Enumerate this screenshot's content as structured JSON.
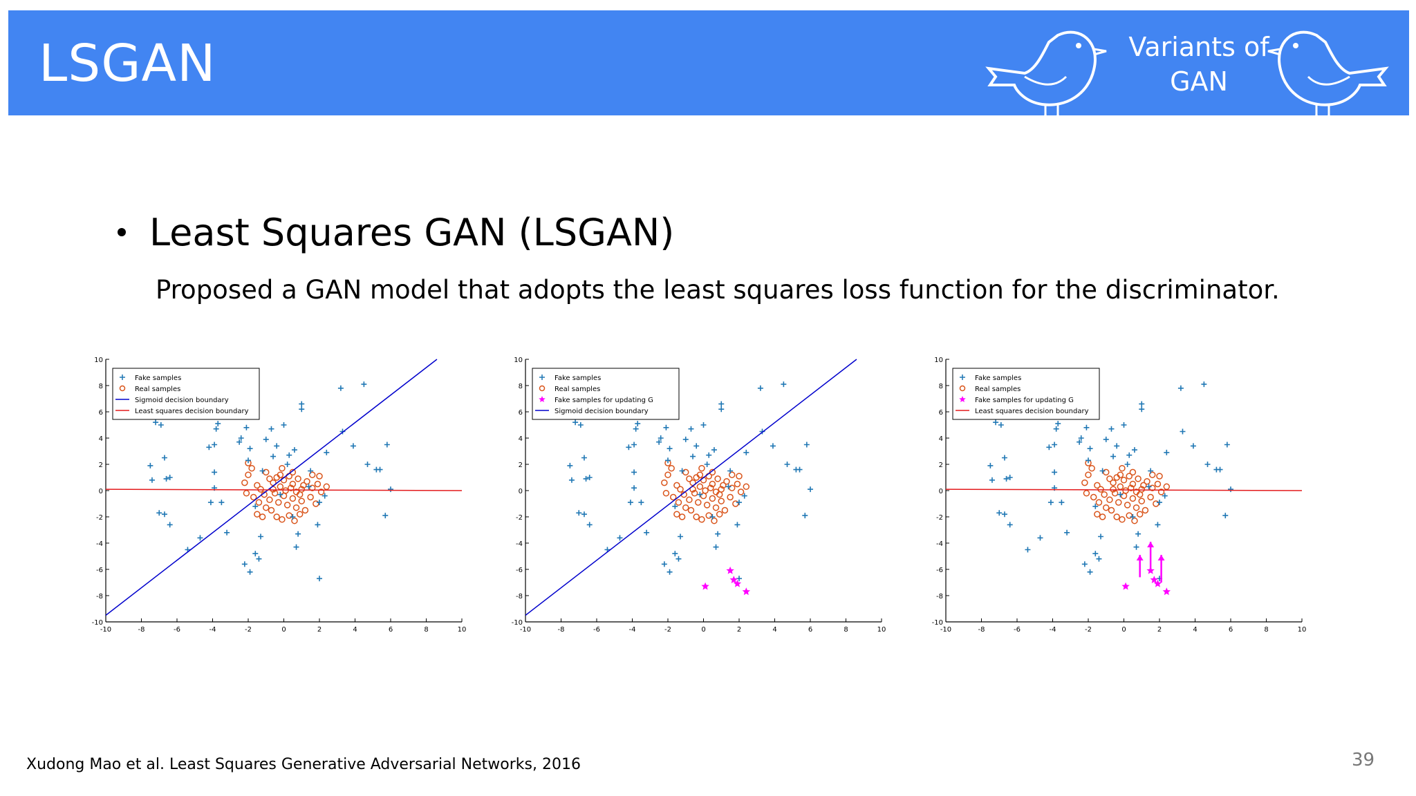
{
  "header": {
    "title": "LSGAN",
    "badge": "Variants of GAN",
    "color": "#4285f2"
  },
  "content": {
    "bullet": "Least Squares GAN (LSGAN)",
    "description": "Proposed a GAN model that adopts the least squares loss function for the discriminator."
  },
  "footer": {
    "citation": "Xudong Mao et al. Least Squares Generative Adversarial Networks, 2016",
    "page_number": "39"
  },
  "chart_data": [
    {
      "type": "scatter",
      "xlim": [
        -10,
        10
      ],
      "ylim": [
        -10,
        10
      ],
      "xticks": [
        "-10",
        "-8",
        "-6",
        "-4",
        "-2",
        "0",
        "2",
        "4",
        "6",
        "8",
        "10"
      ],
      "yticks": [
        "10",
        "8",
        "6",
        "4",
        "2",
        "0",
        "-2",
        "-4",
        "-6",
        "-8",
        "-10"
      ],
      "legend": [
        {
          "label": "Fake samples",
          "marker": "plus",
          "color": "#1f77b4"
        },
        {
          "label": "Real samples",
          "marker": "circle",
          "color": "#d95319"
        },
        {
          "label": "Sigmoid decision boundary",
          "marker": "line",
          "color": "#0000cc"
        },
        {
          "label": "Least squares decision boundary",
          "marker": "line",
          "color": "#e31a1c"
        }
      ],
      "lines": [
        {
          "name": "sigmoid",
          "color": "#0000cc",
          "x": [
            -10,
            8.6
          ],
          "y": [
            -9.5,
            10
          ]
        },
        {
          "name": "least_squares",
          "color": "#e31a1c",
          "x": [
            -10,
            10
          ],
          "y": [
            0.1,
            0
          ]
        }
      ],
      "stars": []
    },
    {
      "type": "scatter",
      "xlim": [
        -10,
        10
      ],
      "ylim": [
        -10,
        10
      ],
      "xticks": [
        "-10",
        "-8",
        "-6",
        "-4",
        "-2",
        "0",
        "2",
        "4",
        "6",
        "8",
        "10"
      ],
      "yticks": [
        "10",
        "8",
        "6",
        "4",
        "2",
        "0",
        "-2",
        "-4",
        "-6",
        "-8",
        "-10"
      ],
      "legend": [
        {
          "label": "Fake samples",
          "marker": "plus",
          "color": "#1f77b4"
        },
        {
          "label": "Real samples",
          "marker": "circle",
          "color": "#d95319"
        },
        {
          "label": "Fake samples for updating G",
          "marker": "star",
          "color": "#ff00ff"
        },
        {
          "label": "Sigmoid decision boundary",
          "marker": "line",
          "color": "#0000cc"
        }
      ],
      "lines": [
        {
          "name": "sigmoid",
          "color": "#0000cc",
          "x": [
            -10,
            8.6
          ],
          "y": [
            -9.5,
            10
          ]
        }
      ],
      "stars": [
        [
          0.1,
          -7.3
        ],
        [
          1.5,
          -6.1
        ],
        [
          1.7,
          -6.8
        ],
        [
          1.9,
          -7.1
        ],
        [
          2.4,
          -7.7
        ]
      ]
    },
    {
      "type": "scatter",
      "xlim": [
        -10,
        10
      ],
      "ylim": [
        -10,
        10
      ],
      "xticks": [
        "-10",
        "-8",
        "-6",
        "-4",
        "-2",
        "0",
        "2",
        "4",
        "6",
        "8",
        "10"
      ],
      "yticks": [
        "10",
        "8",
        "6",
        "4",
        "2",
        "0",
        "-2",
        "-4",
        "-6",
        "-8",
        "-10"
      ],
      "legend": [
        {
          "label": "Fake samples",
          "marker": "plus",
          "color": "#1f77b4"
        },
        {
          "label": "Real samples",
          "marker": "circle",
          "color": "#d95319"
        },
        {
          "label": "Fake samples for updating G",
          "marker": "star",
          "color": "#ff00ff"
        },
        {
          "label": "Least squares decision boundary",
          "marker": "line",
          "color": "#e31a1c"
        }
      ],
      "lines": [
        {
          "name": "least_squares",
          "color": "#e31a1c",
          "x": [
            -10,
            10
          ],
          "y": [
            0.1,
            0
          ]
        }
      ],
      "stars": [
        [
          0.1,
          -7.3
        ],
        [
          1.5,
          -6.1
        ],
        [
          1.7,
          -6.8
        ],
        [
          1.9,
          -7.1
        ],
        [
          2.4,
          -7.7
        ]
      ],
      "arrows": [
        [
          0.9,
          -6.6,
          0.9,
          -4.9
        ],
        [
          1.5,
          -6.2,
          1.5,
          -3.9
        ],
        [
          2.1,
          -7.0,
          2.1,
          -4.9
        ]
      ]
    }
  ],
  "shared_samples": {
    "fake": [
      [
        -7.5,
        1.9
      ],
      [
        -7.4,
        0.8
      ],
      [
        -7.2,
        5.2
      ],
      [
        -6.9,
        5.0
      ],
      [
        -6.7,
        2.5
      ],
      [
        -7.0,
        -1.7
      ],
      [
        -6.7,
        -1.8
      ],
      [
        -6.4,
        -2.6
      ],
      [
        -6.6,
        0.9
      ],
      [
        -6.4,
        1.0
      ],
      [
        -5.4,
        -4.5
      ],
      [
        -4.7,
        -3.6
      ],
      [
        -4.2,
        3.3
      ],
      [
        -3.9,
        1.4
      ],
      [
        -3.8,
        4.7
      ],
      [
        -3.7,
        5.1
      ],
      [
        -3.9,
        3.5
      ],
      [
        -3.9,
        0.2
      ],
      [
        -4.1,
        -0.9
      ],
      [
        -3.5,
        -0.9
      ],
      [
        -3.2,
        -3.2
      ],
      [
        -2.5,
        3.7
      ],
      [
        -2.4,
        4.0
      ],
      [
        -2.1,
        4.8
      ],
      [
        -2.0,
        2.3
      ],
      [
        -1.9,
        3.2
      ],
      [
        -2.2,
        -5.6
      ],
      [
        -1.9,
        -6.2
      ],
      [
        -1.6,
        -4.8
      ],
      [
        -1.4,
        -5.2
      ],
      [
        -1.3,
        -3.5
      ],
      [
        -1.2,
        1.5
      ],
      [
        -1.0,
        3.9
      ],
      [
        -0.7,
        4.7
      ],
      [
        -0.6,
        2.6
      ],
      [
        -0.4,
        3.4
      ],
      [
        0.0,
        5.0
      ],
      [
        0.3,
        2.7
      ],
      [
        0.6,
        3.1
      ],
      [
        0.5,
        -2.0
      ],
      [
        0.7,
        -4.3
      ],
      [
        0.8,
        -3.3
      ],
      [
        1.0,
        6.2
      ],
      [
        1.0,
        6.6
      ],
      [
        1.5,
        1.5
      ],
      [
        1.9,
        -2.6
      ],
      [
        2.0,
        -6.7
      ],
      [
        2.4,
        2.9
      ],
      [
        2.3,
        -0.4
      ],
      [
        3.2,
        7.8
      ],
      [
        3.3,
        4.5
      ],
      [
        3.9,
        3.4
      ],
      [
        4.5,
        8.1
      ],
      [
        4.7,
        2.0
      ],
      [
        5.2,
        1.6
      ],
      [
        5.4,
        1.6
      ],
      [
        5.8,
        3.5
      ],
      [
        6.0,
        0.1
      ],
      [
        5.7,
        -1.9
      ],
      [
        2.0,
        -0.9
      ],
      [
        -1.6,
        -1.2
      ],
      [
        1.4,
        0.3
      ],
      [
        -0.2,
        -0.3
      ],
      [
        0.2,
        2.0
      ]
    ],
    "real": [
      [
        -2.0,
        2.1
      ],
      [
        -2.0,
        1.2
      ],
      [
        -1.5,
        0.4
      ],
      [
        -1.3,
        0.1
      ],
      [
        -1.0,
        1.4
      ],
      [
        -0.8,
        0.9
      ],
      [
        -0.6,
        0.6
      ],
      [
        -0.4,
        1.0
      ],
      [
        -0.2,
        1.2
      ],
      [
        0.0,
        0.8
      ],
      [
        0.3,
        1.1
      ],
      [
        0.5,
        0.5
      ],
      [
        0.8,
        0.9
      ],
      [
        1.1,
        0.4
      ],
      [
        1.3,
        0.7
      ],
      [
        1.6,
        0.2
      ],
      [
        1.9,
        0.5
      ],
      [
        2.1,
        -0.1
      ],
      [
        2.4,
        0.3
      ],
      [
        -2.1,
        -0.2
      ],
      [
        -1.7,
        -0.5
      ],
      [
        -1.4,
        -0.9
      ],
      [
        -1.1,
        -0.3
      ],
      [
        -0.8,
        -0.7
      ],
      [
        -0.5,
        -0.2
      ],
      [
        -0.3,
        -0.9
      ],
      [
        0.0,
        -0.4
      ],
      [
        0.2,
        -1.1
      ],
      [
        0.5,
        -0.6
      ],
      [
        0.7,
        -1.3
      ],
      [
        1.0,
        -0.8
      ],
      [
        1.2,
        -1.5
      ],
      [
        1.5,
        -0.5
      ],
      [
        1.8,
        -1.0
      ],
      [
        -1.5,
        -1.8
      ],
      [
        -1.2,
        -2.0
      ],
      [
        -0.7,
        -1.5
      ],
      [
        -0.4,
        -2.0
      ],
      [
        -0.1,
        -2.2
      ],
      [
        0.3,
        -1.9
      ],
      [
        0.6,
        -2.3
      ],
      [
        0.9,
        -1.8
      ],
      [
        -0.6,
        0.1
      ],
      [
        -0.2,
        0.3
      ],
      [
        0.1,
        0.0
      ],
      [
        0.4,
        0.2
      ],
      [
        0.7,
        -0.1
      ],
      [
        1.0,
        0.1
      ],
      [
        -2.2,
        0.6
      ],
      [
        -1.8,
        1.7
      ],
      [
        -0.1,
        1.7
      ],
      [
        0.5,
        1.4
      ],
      [
        2.0,
        1.1
      ],
      [
        1.6,
        1.2
      ],
      [
        -1.0,
        -1.3
      ],
      [
        0.9,
        -0.3
      ]
    ]
  }
}
